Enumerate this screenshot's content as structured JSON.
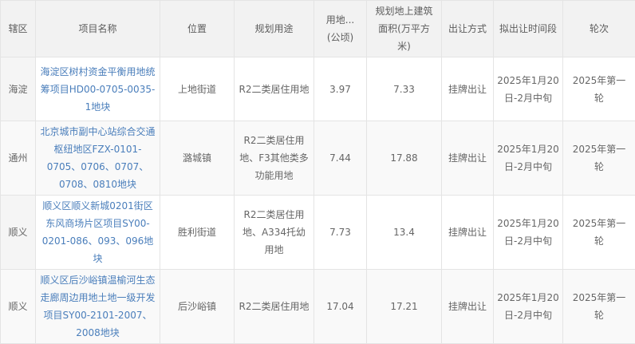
{
  "colors": {
    "header_bg": "#f2f2f2",
    "first_col_bg": "#f5f5f5",
    "stripe_bg": "#f9f9f9",
    "border": "#e4e4e4",
    "header_text": "#5c5c5c",
    "body_text": "#666666",
    "link_text": "#4a7ebb"
  },
  "table": {
    "columns": [
      {
        "key": "district",
        "label": "辖区"
      },
      {
        "key": "project",
        "label": "项目名称"
      },
      {
        "key": "location",
        "label": "位置"
      },
      {
        "key": "use",
        "label": "规划用途"
      },
      {
        "key": "area",
        "label": "用地...\n(公顷)"
      },
      {
        "key": "gfa",
        "label": "规划地上建筑面积(万平方米)"
      },
      {
        "key": "method",
        "label": "出让方式"
      },
      {
        "key": "period",
        "label": "拟出让时间段"
      },
      {
        "key": "round",
        "label": "轮次"
      }
    ],
    "rows": [
      {
        "district": "海淀",
        "project": "海淀区树村资金平衡用地统筹项目HD00-0705-0035-1地块",
        "location": "上地街道",
        "use": "R2二类居住用地",
        "area": "3.97",
        "gfa": "7.33",
        "method": "挂牌出让",
        "period": "2025年1月20日-2月中旬",
        "round": "2025年第一轮"
      },
      {
        "district": "通州",
        "project": "北京城市副中心站综合交通枢纽地区FZX-0101-0705、0706、0707、0708、0810地块",
        "location": "潞城镇",
        "use": "R2二类居住用地、F3其他类多功能用地",
        "area": "7.44",
        "gfa": "17.88",
        "method": "挂牌出让",
        "period": "2025年1月20日-2月中旬",
        "round": "2025年第一轮"
      },
      {
        "district": "顺义",
        "project": "顺义区顺义新城0201街区东风商场片区项目SY00-0201-086、093、096地块",
        "location": "胜利街道",
        "use": "R2二类居住用地、A334托幼用地",
        "area": "7.73",
        "gfa": "13.4",
        "method": "挂牌出让",
        "period": "2025年1月20日-2月中旬",
        "round": "2025年第一轮"
      },
      {
        "district": "顺义",
        "project": "顺义区后沙峪镇温榆河生态走廊周边用地土地一级开发项目SY00-2101-2007、2008地块",
        "location": "后沙峪镇",
        "use": "R2二类居住用地",
        "area": "17.04",
        "gfa": "17.21",
        "method": "挂牌出让",
        "period": "2025年1月20日-2月中旬",
        "round": "2025年第一轮"
      }
    ]
  }
}
